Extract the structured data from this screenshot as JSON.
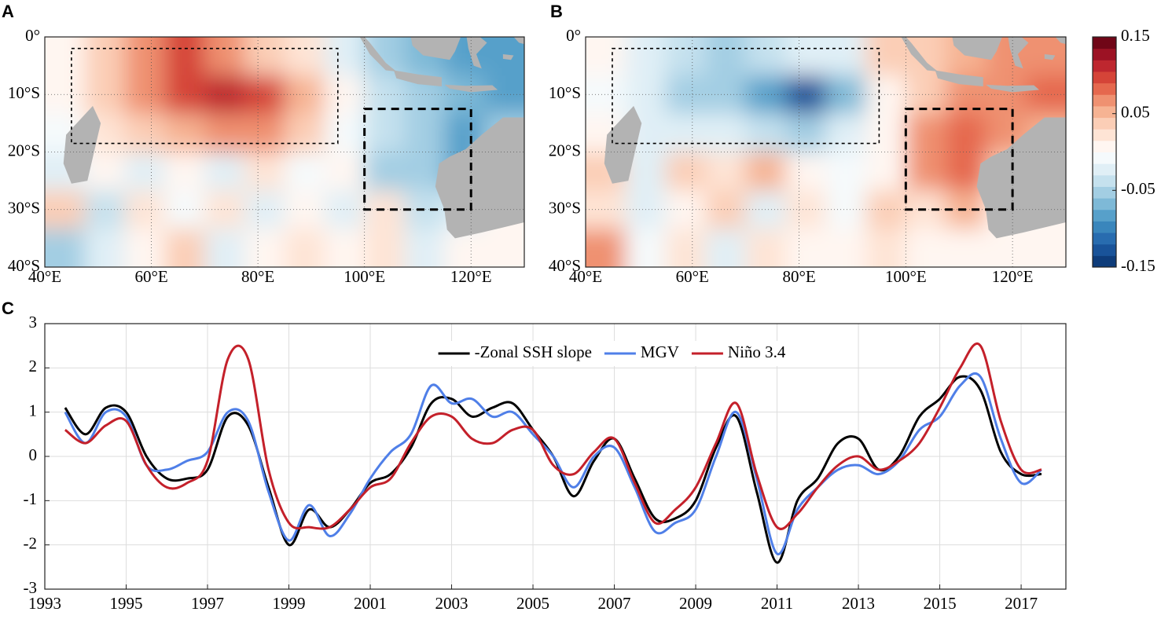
{
  "chart_data": [
    {
      "type": "map",
      "panel": "A",
      "xlim": [
        40,
        130
      ],
      "ylim": [
        -40,
        0
      ],
      "xticks": [
        {
          "value": 40,
          "label": "40°E"
        },
        {
          "value": 60,
          "label": "60°E"
        },
        {
          "value": 80,
          "label": "80°E"
        },
        {
          "value": 100,
          "label": "100°E"
        },
        {
          "value": 120,
          "label": "120°E"
        }
      ],
      "yticks": [
        {
          "value": 0,
          "label": "0°"
        },
        {
          "value": -10,
          "label": "10°S"
        },
        {
          "value": -20,
          "label": "20°S"
        },
        {
          "value": -30,
          "label": "30°S"
        },
        {
          "value": -40,
          "label": "40°S"
        }
      ],
      "z": [
        [
          0.01,
          0.04,
          0.07,
          0.09,
          0.07,
          0.04,
          0.02,
          -0.03,
          -0.06,
          -0.07,
          -0.08,
          -0.09
        ],
        [
          0.0,
          0.03,
          0.07,
          0.09,
          0.11,
          0.09,
          0.05,
          0.0,
          -0.04,
          -0.06,
          -0.07,
          -0.09
        ],
        [
          -0.01,
          0.02,
          0.04,
          0.05,
          0.06,
          0.06,
          0.03,
          -0.01,
          -0.04,
          -0.06,
          -0.08,
          -0.06
        ],
        [
          -0.02,
          0.0,
          -0.02,
          0.01,
          -0.03,
          0.02,
          -0.01,
          0.01,
          -0.05,
          -0.06,
          -0.08,
          -0.03
        ],
        [
          0.03,
          -0.04,
          0.02,
          -0.01,
          0.02,
          -0.03,
          0.01,
          -0.02,
          0.02,
          -0.04,
          -0.03,
          0.0
        ],
        [
          -0.05,
          -0.02,
          0.0,
          0.03,
          -0.03,
          0.01,
          0.02,
          0.0,
          0.02,
          -0.02,
          0.01,
          0.0
        ]
      ],
      "boxes": [
        {
          "lon": [
            45,
            95
          ],
          "lat": [
            -2,
            -18.5
          ]
        },
        {
          "lon": [
            100,
            120
          ],
          "lat": [
            -12.5,
            -30
          ]
        }
      ]
    },
    {
      "type": "map",
      "panel": "B",
      "xlim": [
        40,
        130
      ],
      "ylim": [
        -40,
        0
      ],
      "xticks": [
        {
          "value": 40,
          "label": "40°E"
        },
        {
          "value": 60,
          "label": "60°E"
        },
        {
          "value": 80,
          "label": "80°E"
        },
        {
          "value": 100,
          "label": "100°E"
        },
        {
          "value": 120,
          "label": "120°E"
        }
      ],
      "yticks": [
        {
          "value": 0,
          "label": "0°"
        },
        {
          "value": -10,
          "label": "10°S"
        },
        {
          "value": -20,
          "label": "20°S"
        },
        {
          "value": -30,
          "label": "30°S"
        },
        {
          "value": -40,
          "label": "40°S"
        }
      ],
      "z": [
        [
          0.01,
          -0.03,
          -0.04,
          -0.05,
          -0.04,
          -0.03,
          -0.02,
          0.03,
          0.04,
          0.05,
          0.06,
          0.07
        ],
        [
          -0.01,
          -0.03,
          -0.05,
          -0.06,
          -0.09,
          -0.13,
          -0.07,
          0.01,
          0.04,
          0.06,
          0.07,
          0.08
        ],
        [
          0.0,
          -0.02,
          -0.03,
          -0.03,
          -0.04,
          -0.06,
          -0.03,
          0.0,
          0.06,
          0.08,
          0.06,
          0.05
        ],
        [
          0.03,
          -0.02,
          0.04,
          0.02,
          0.05,
          0.0,
          -0.01,
          0.0,
          0.06,
          0.08,
          0.03,
          0.02
        ],
        [
          0.02,
          -0.02,
          0.0,
          0.03,
          -0.02,
          0.02,
          -0.01,
          0.03,
          0.02,
          0.05,
          0.01,
          0.0
        ],
        [
          0.06,
          -0.01,
          0.02,
          -0.02,
          0.02,
          0.0,
          0.01,
          0.02,
          0.0,
          0.01,
          0.0,
          0.0
        ]
      ],
      "boxes": [
        {
          "lon": [
            45,
            95
          ],
          "lat": [
            -2,
            -18.5
          ]
        },
        {
          "lon": [
            100,
            120
          ],
          "lat": [
            -12.5,
            -30
          ]
        }
      ]
    },
    {
      "type": "colorbar",
      "zlim": [
        -0.15,
        0.15
      ],
      "zticks": [
        0.15,
        0.05,
        -0.05,
        -0.15
      ],
      "levels": 20,
      "colormap": [
        "#08306b",
        "#1f5fa8",
        "#4393c3",
        "#92c5de",
        "#d6eaf3",
        "#ffffff",
        "#fddbc7",
        "#f4a582",
        "#e0533c",
        "#b2182b",
        "#5a0010"
      ]
    },
    {
      "type": "line",
      "panel": "C",
      "xlim": [
        1993,
        2018.1
      ],
      "ylim": [
        -3,
        3
      ],
      "xticks": [
        1993,
        1995,
        1997,
        1999,
        2001,
        2003,
        2005,
        2007,
        2009,
        2011,
        2013,
        2015,
        2017
      ],
      "yticks": [
        -3,
        -2,
        -1,
        0,
        1,
        2,
        3
      ],
      "grid": true,
      "legend": "top",
      "x": [
        1993.5,
        1994,
        1994.5,
        1995,
        1995.5,
        1996,
        1996.5,
        1997,
        1997.5,
        1998,
        1998.5,
        1999,
        1999.5,
        2000,
        2000.5,
        2001,
        2001.5,
        2002,
        2002.5,
        2003,
        2003.5,
        2004,
        2004.5,
        2005,
        2005.5,
        2006,
        2006.5,
        2007,
        2007.5,
        2008,
        2008.5,
        2009,
        2009.5,
        2010,
        2010.5,
        2011,
        2011.5,
        2012,
        2012.5,
        2013,
        2013.5,
        2014,
        2014.5,
        2015,
        2015.5,
        2016,
        2016.5,
        2017,
        2017.5
      ],
      "series": [
        {
          "name": "-Zonal SSH slope",
          "color": "#000000",
          "values": [
            1.1,
            0.5,
            1.1,
            1.0,
            0.0,
            -0.5,
            -0.5,
            -0.3,
            0.9,
            0.7,
            -0.7,
            -2.0,
            -1.2,
            -1.6,
            -1.2,
            -0.6,
            -0.4,
            0.2,
            1.2,
            1.3,
            0.9,
            1.1,
            1.2,
            0.6,
            0.0,
            -0.9,
            -0.1,
            0.4,
            -0.5,
            -1.4,
            -1.4,
            -1.0,
            0.2,
            0.9,
            -0.8,
            -2.4,
            -1.0,
            -0.5,
            0.3,
            0.4,
            -0.3,
            0.0,
            0.9,
            1.3,
            1.8,
            1.5,
            0.1,
            -0.4,
            -0.4
          ]
        },
        {
          "name": "MGV",
          "color": "#4f7fe8",
          "values": [
            1.0,
            0.3,
            1.0,
            0.9,
            -0.2,
            -0.3,
            -0.1,
            0.1,
            1.0,
            0.8,
            -0.8,
            -1.9,
            -1.1,
            -1.8,
            -1.3,
            -0.5,
            0.1,
            0.5,
            1.6,
            1.2,
            1.3,
            0.9,
            1.0,
            0.5,
            0.0,
            -0.7,
            0.0,
            0.2,
            -0.7,
            -1.7,
            -1.5,
            -1.2,
            0.0,
            1.0,
            -0.5,
            -2.2,
            -1.2,
            -0.7,
            -0.3,
            -0.2,
            -0.4,
            -0.1,
            0.6,
            0.9,
            1.6,
            1.8,
            0.4,
            -0.6,
            -0.3
          ]
        },
        {
          "name": "Niño 3.4",
          "color": "#c4202a",
          "values": [
            0.6,
            0.3,
            0.7,
            0.8,
            -0.2,
            -0.7,
            -0.6,
            -0.1,
            2.2,
            2.2,
            -0.3,
            -1.5,
            -1.6,
            -1.6,
            -1.2,
            -0.7,
            -0.5,
            0.3,
            0.9,
            0.9,
            0.4,
            0.3,
            0.6,
            0.6,
            -0.2,
            -0.4,
            0.1,
            0.4,
            -0.6,
            -1.5,
            -1.2,
            -0.7,
            0.3,
            1.2,
            -0.4,
            -1.6,
            -1.3,
            -0.7,
            -0.2,
            0.0,
            -0.3,
            -0.1,
            0.3,
            1.1,
            2.0,
            2.5,
            0.8,
            -0.3,
            -0.3
          ]
        }
      ]
    }
  ]
}
